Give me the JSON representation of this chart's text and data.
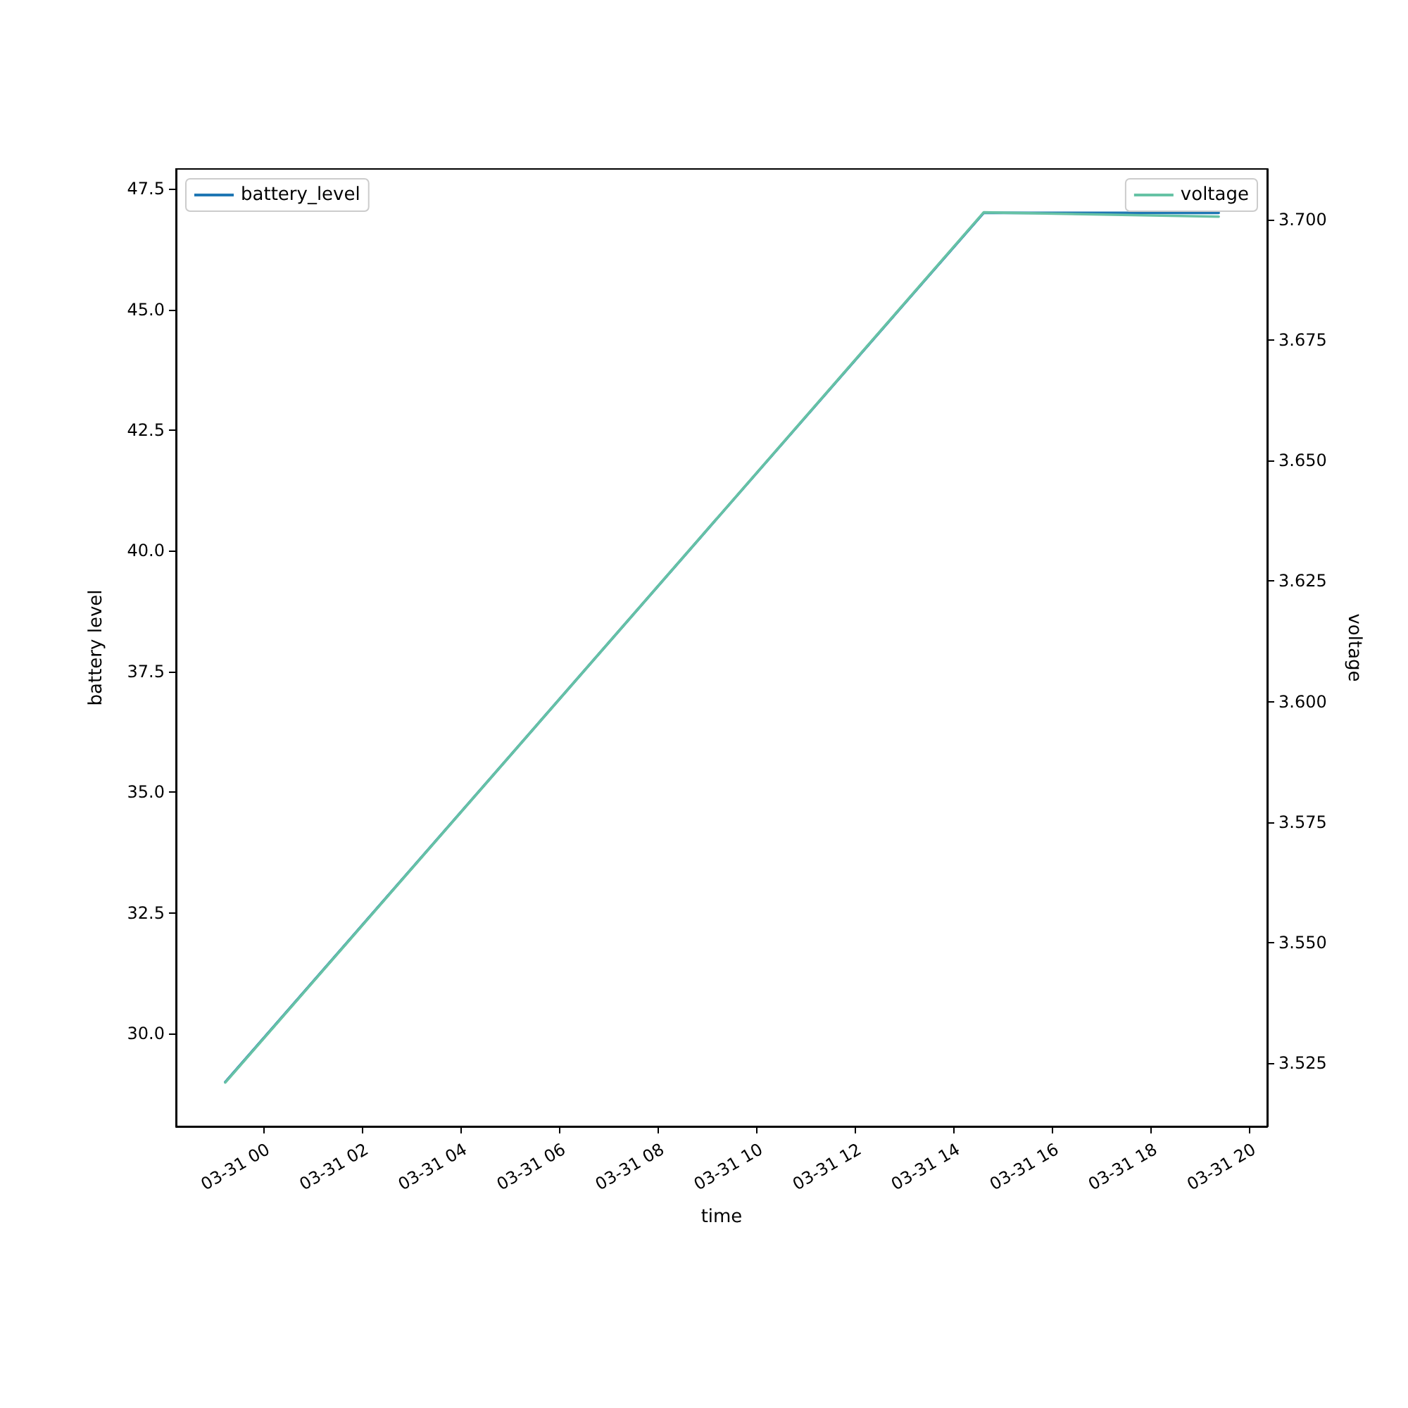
{
  "chart_data": {
    "type": "line",
    "xlabel": "time",
    "ylabel": "battery level",
    "y2label": "voltage",
    "xlim": [
      "--03-30T22:13",
      "--03-31T20:21"
    ],
    "xticks": [
      {
        "value": "--03-31T00:00",
        "label": "03-31 00"
      },
      {
        "value": "--03-31T02:00",
        "label": "03-31 02"
      },
      {
        "value": "--03-31T04:00",
        "label": "03-31 04"
      },
      {
        "value": "--03-31T06:00",
        "label": "03-31 06"
      },
      {
        "value": "--03-31T08:00",
        "label": "03-31 08"
      },
      {
        "value": "--03-31T10:00",
        "label": "03-31 10"
      },
      {
        "value": "--03-31T12:00",
        "label": "03-31 12"
      },
      {
        "value": "--03-31T14:00",
        "label": "03-31 14"
      },
      {
        "value": "--03-31T16:00",
        "label": "03-31 16"
      },
      {
        "value": "--03-31T18:00",
        "label": "03-31 18"
      },
      {
        "value": "--03-31T20:00",
        "label": "03-31 20"
      }
    ],
    "ylim": [
      28.08,
      47.91
    ],
    "yticks": [
      {
        "value": 30,
        "label": "30.0"
      },
      {
        "value": 32.5,
        "label": "32.5"
      },
      {
        "value": 35,
        "label": "35.0"
      },
      {
        "value": 37.5,
        "label": "37.5"
      },
      {
        "value": 40,
        "label": "40.0"
      },
      {
        "value": 42.5,
        "label": "42.5"
      },
      {
        "value": 45,
        "label": "45.0"
      },
      {
        "value": 47.5,
        "label": "47.5"
      }
    ],
    "y2lim": [
      3.5119,
      3.7105
    ],
    "y2ticks": [
      {
        "value": 3.525,
        "label": "3.525"
      },
      {
        "value": 3.55,
        "label": "3.550"
      },
      {
        "value": 3.575,
        "label": "3.575"
      },
      {
        "value": 3.6,
        "label": "3.600"
      },
      {
        "value": 3.625,
        "label": "3.625"
      },
      {
        "value": 3.65,
        "label": "3.650"
      },
      {
        "value": 3.675,
        "label": "3.675"
      },
      {
        "value": 3.7,
        "label": "3.700"
      }
    ],
    "legend": "top",
    "grid": false,
    "marker": "none",
    "line_style": "solid",
    "series": [
      {
        "name": "battery_level",
        "color": "#1f77b4",
        "x": [
          "--03-30T23:13",
          "--03-31T14:36",
          "--03-31T19:22"
        ],
        "values": [
          29.0,
          47.0,
          47.0
        ]
      },
      {
        "name": "voltage",
        "color": "#66c2a5",
        "axis": "y2",
        "x": [
          "--03-30T23:13",
          "--03-31T14:36",
          "--03-31T19:22"
        ],
        "values": [
          3.521,
          3.7015,
          3.7006
        ]
      }
    ]
  }
}
